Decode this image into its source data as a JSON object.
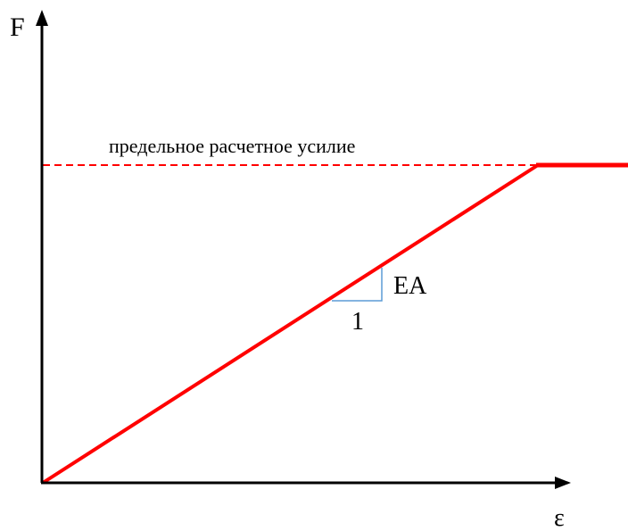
{
  "axes": {
    "y_label": "F",
    "x_label": "ε"
  },
  "limit_line": {
    "label": "предельное расчетное усилие",
    "color": "#ff0000"
  },
  "curve": {
    "color": "#ff0000"
  },
  "slope_triangle": {
    "rise_label": "EA",
    "run_label": "1",
    "color": "#5b9bd5"
  },
  "axis_color": "#000000"
}
